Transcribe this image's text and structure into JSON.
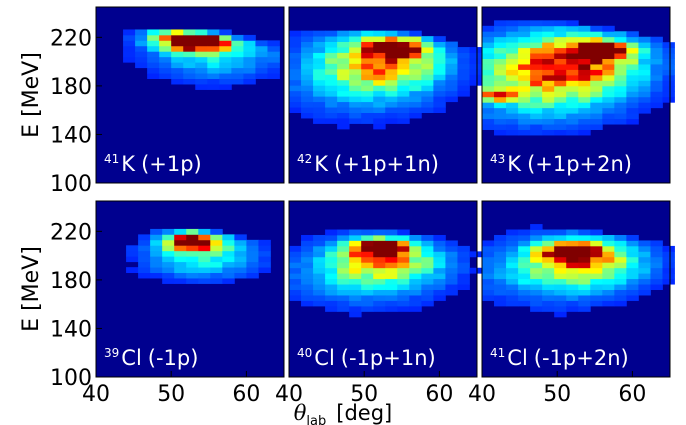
{
  "chart_data": [
    {
      "type": "heatmap",
      "nucleus": {
        "mass": "41",
        "element": "K",
        "reaction": "(+1p)"
      },
      "xlim": [
        40,
        65
      ],
      "ylim": [
        100,
        245
      ],
      "hotspots": [
        {
          "x": 54,
          "y": 216,
          "sx": 2.5,
          "sy": 5,
          "amp": 1.0
        },
        {
          "x": 51,
          "y": 220,
          "sx": 3,
          "sy": 6,
          "amp": 0.55
        },
        {
          "x": 56,
          "y": 206,
          "sx": 6,
          "sy": 14,
          "amp": 0.28
        }
      ],
      "xrange": [
        42,
        64
      ],
      "yfloor": [
        150,
        225
      ]
    },
    {
      "type": "heatmap",
      "nucleus": {
        "mass": "42",
        "element": "K",
        "reaction": "(+1p+1n)"
      },
      "xlim": [
        40,
        65
      ],
      "ylim": [
        100,
        245
      ],
      "hotspots": [
        {
          "x": 54,
          "y": 212,
          "sx": 2.5,
          "sy": 5,
          "amp": 1.0
        },
        {
          "x": 53,
          "y": 200,
          "sx": 5,
          "sy": 14,
          "amp": 0.5
        },
        {
          "x": 50,
          "y": 190,
          "sx": 7,
          "sy": 22,
          "amp": 0.3
        }
      ],
      "xrange": [
        40,
        65
      ],
      "yfloor": [
        140,
        225
      ]
    },
    {
      "type": "heatmap",
      "nucleus": {
        "mass": "43",
        "element": "K",
        "reaction": "(+1p+2n)"
      },
      "xlim": [
        40,
        65
      ],
      "ylim": [
        100,
        245
      ],
      "hotspots": [
        {
          "x": 56,
          "y": 209,
          "sx": 2.5,
          "sy": 5,
          "amp": 1.0
        },
        {
          "x": 52,
          "y": 200,
          "sx": 6,
          "sy": 16,
          "amp": 0.6
        },
        {
          "x": 48,
          "y": 185,
          "sx": 8,
          "sy": 22,
          "amp": 0.45
        },
        {
          "x": 42,
          "y": 172,
          "sx": 2,
          "sy": 3,
          "amp": 0.5
        }
      ],
      "xrange": [
        40,
        65
      ],
      "yfloor": [
        135,
        230
      ]
    },
    {
      "type": "heatmap",
      "nucleus": {
        "mass": "39",
        "element": "Cl",
        "reaction": "(-1p)"
      },
      "xlim": [
        40,
        65
      ],
      "ylim": [
        100,
        245
      ],
      "hotspots": [
        {
          "x": 53,
          "y": 212,
          "sx": 2.5,
          "sy": 5,
          "amp": 1.0
        },
        {
          "x": 54,
          "y": 200,
          "sx": 5,
          "sy": 12,
          "amp": 0.35
        }
      ],
      "xrange": [
        44,
        64
      ],
      "yfloor": [
        150,
        222
      ]
    },
    {
      "type": "heatmap",
      "nucleus": {
        "mass": "40",
        "element": "Cl",
        "reaction": "(-1p+1n)"
      },
      "xlim": [
        40,
        65
      ],
      "ylim": [
        100,
        245
      ],
      "hotspots": [
        {
          "x": 52,
          "y": 206,
          "sx": 2.5,
          "sy": 5,
          "amp": 1.0
        },
        {
          "x": 53,
          "y": 196,
          "sx": 5,
          "sy": 12,
          "amp": 0.45
        },
        {
          "x": 50,
          "y": 185,
          "sx": 7,
          "sy": 18,
          "amp": 0.25
        }
      ],
      "xrange": [
        40,
        65
      ],
      "yfloor": [
        145,
        222
      ]
    },
    {
      "type": "heatmap",
      "nucleus": {
        "mass": "41",
        "element": "Cl",
        "reaction": "(-1p+2n)"
      },
      "xlim": [
        40,
        65
      ],
      "ylim": [
        100,
        245
      ],
      "hotspots": [
        {
          "x": 52,
          "y": 203,
          "sx": 2.5,
          "sy": 5,
          "amp": 1.0
        },
        {
          "x": 54,
          "y": 196,
          "sx": 5,
          "sy": 12,
          "amp": 0.45
        },
        {
          "x": 50,
          "y": 188,
          "sx": 7,
          "sy": 18,
          "amp": 0.3
        }
      ],
      "xrange": [
        40,
        65
      ],
      "yfloor": [
        145,
        222
      ]
    }
  ],
  "axes": {
    "ylabel": "E [MeV]",
    "xlabel_symbol": "θ",
    "xlabel_subscript": "lab",
    "xlabel_unit": "[deg]",
    "yticks": [
      "220",
      "180",
      "140",
      "100"
    ],
    "ytick_values": [
      220,
      180,
      140,
      100
    ],
    "xticks": [
      "40",
      "50",
      "60"
    ],
    "xtick_values": [
      40,
      50,
      60
    ]
  },
  "colors": {
    "background": "#00008f",
    "colormap": "jet",
    "label_text": "#ffffff"
  }
}
